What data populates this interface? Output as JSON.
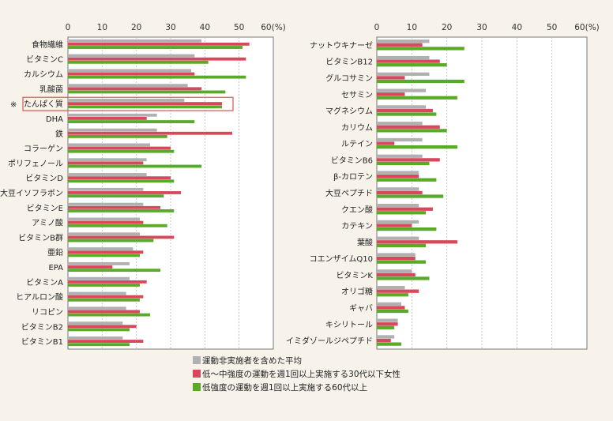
{
  "chart_data": [
    {
      "type": "bar",
      "orientation": "horizontal",
      "xlim": [
        0,
        60
      ],
      "ticks": [
        "0",
        "10",
        "20",
        "30",
        "40",
        "50",
        "60(%)"
      ],
      "tick_values": [
        0,
        10,
        20,
        30,
        40,
        50,
        60
      ],
      "grid": true,
      "categories": [
        "食物繊維",
        "ビタミンC",
        "カルシウム",
        "乳酸菌",
        "たんぱく質",
        "DHA",
        "鉄",
        "コラーゲン",
        "ポリフェノール",
        "ビタミンD",
        "大豆イソフラボン",
        "ビタミンE",
        "アミノ酸",
        "ビタミンB群",
        "亜鉛",
        "EPA",
        "ビタミンA",
        "ヒアルロン酸",
        "リコピン",
        "ビタミンB2",
        "ビタミンB1"
      ],
      "highlight": {
        "index": 4,
        "mark": "※",
        "box_color": "#d9534f"
      },
      "series": [
        {
          "name": "運動非実施者を含めた平均",
          "color": "#b0b0b0",
          "values": [
            39,
            37,
            36,
            35,
            34,
            26,
            26,
            24,
            23,
            23,
            22,
            22,
            21,
            21,
            19,
            18,
            18,
            17,
            17,
            16,
            16
          ]
        },
        {
          "name": "低～中強度の運動を週1回以上実施する30代以下女性",
          "color": "#d9475b",
          "values": [
            53,
            52,
            37,
            39,
            45,
            23,
            48,
            30,
            22,
            30,
            33,
            27,
            22,
            31,
            22,
            13,
            23,
            22,
            21,
            20,
            22
          ]
        },
        {
          "name": "低強度の運動を週1回以上実施する60代以上",
          "color": "#5aaa2a",
          "values": [
            51,
            41,
            52,
            46,
            45,
            37,
            29,
            31,
            39,
            31,
            28,
            31,
            29,
            25,
            21,
            27,
            21,
            21,
            24,
            18,
            18
          ]
        }
      ]
    },
    {
      "type": "bar",
      "orientation": "horizontal",
      "xlim": [
        0,
        60
      ],
      "ticks": [
        "0",
        "10",
        "20",
        "30",
        "40",
        "50",
        "60(%)"
      ],
      "tick_values": [
        0,
        10,
        20,
        30,
        40,
        50,
        60
      ],
      "grid": true,
      "categories": [
        "ナットウキナーゼ",
        "ビタミンB12",
        "グルコサミン",
        "セサミン",
        "マグネシウム",
        "カリウム",
        "ルテイン",
        "ビタミンB6",
        "β-カロテン",
        "大豆ペプチド",
        "クエン酸",
        "カテキン",
        "葉酸",
        "コエンザイムQ10",
        "ビタミンK",
        "オリゴ糖",
        "ギャバ",
        "キシリトール",
        "イミダゾールジペプチド"
      ],
      "series": [
        {
          "name": "運動非実施者を含めた平均",
          "color": "#b0b0b0",
          "values": [
            15,
            15,
            15,
            14,
            14,
            13,
            13,
            13,
            12,
            12,
            12,
            12,
            12,
            11,
            10,
            8,
            7,
            6,
            5
          ]
        },
        {
          "name": "低～中強度の運動を週1回以上実施する30代以下女性",
          "color": "#d9475b",
          "values": [
            13,
            18,
            8,
            8,
            16,
            18,
            5,
            18,
            12,
            13,
            16,
            10,
            23,
            11,
            11,
            12,
            8,
            6,
            4
          ]
        },
        {
          "name": "低強度の運動を週1回以上実施する60代以上",
          "color": "#5aaa2a",
          "values": [
            25,
            20,
            25,
            23,
            17,
            20,
            23,
            15,
            17,
            19,
            14,
            17,
            14,
            14,
            15,
            9,
            9,
            5,
            7
          ]
        }
      ]
    }
  ],
  "legend": {
    "placement": "bottom-center",
    "items": [
      {
        "label": "運動非実施者を含めた平均",
        "color": "#b0b0b0"
      },
      {
        "label": "低～中強度の運動を週1回以上実施する30代以下女性",
        "color": "#d9475b"
      },
      {
        "label": "低強度の運動を週1回以上実施する60代以上",
        "color": "#5aaa2a"
      }
    ]
  }
}
